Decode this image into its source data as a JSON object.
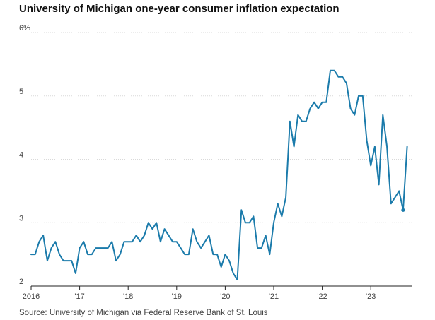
{
  "title": "University of Michigan one-year consumer inflation expectation",
  "source": "Source: University of Michigan via Federal Reserve Bank of St. Louis",
  "colors": {
    "line": "#1b7bab",
    "grid": "#d9d9d9",
    "axis": "#222222"
  },
  "chart_data": {
    "type": "line",
    "title": "University of Michigan one-year consumer inflation expectation",
    "xlabel": "",
    "ylabel": "",
    "grid": true,
    "legend": "none",
    "ylim": [
      2,
      6
    ],
    "yticks": [
      {
        "value": 2,
        "label": "2"
      },
      {
        "value": 3,
        "label": "3"
      },
      {
        "value": 4,
        "label": "4"
      },
      {
        "value": 5,
        "label": "5"
      },
      {
        "value": 6,
        "label": "6%"
      }
    ],
    "xticks": [
      {
        "value": 2016,
        "label": "2016"
      },
      {
        "value": 2017,
        "label": "'17"
      },
      {
        "value": 2018,
        "label": "'18"
      },
      {
        "value": 2019,
        "label": "'19"
      },
      {
        "value": 2020,
        "label": "'20"
      },
      {
        "value": 2021,
        "label": "'21"
      },
      {
        "value": 2022,
        "label": "'22"
      },
      {
        "value": 2023,
        "label": "'23"
      }
    ],
    "series": [
      {
        "start": "2016-01",
        "frequency": "monthly",
        "values": [
          2.5,
          2.5,
          2.7,
          2.8,
          2.4,
          2.6,
          2.7,
          2.5,
          2.4,
          2.4,
          2.4,
          2.2,
          2.6,
          2.7,
          2.5,
          2.5,
          2.6,
          2.6,
          2.6,
          2.6,
          2.7,
          2.4,
          2.5,
          2.7,
          2.7,
          2.7,
          2.8,
          2.7,
          2.8,
          3.0,
          2.9,
          3.0,
          2.7,
          2.9,
          2.8,
          2.7,
          2.7,
          2.6,
          2.5,
          2.5,
          2.9,
          2.7,
          2.6,
          2.7,
          2.8,
          2.5,
          2.5,
          2.3,
          2.5,
          2.4,
          2.2,
          2.1,
          3.2,
          3.0,
          3.0,
          3.1,
          2.6,
          2.6,
          2.8,
          2.5,
          3.0,
          3.3,
          3.1,
          3.4,
          4.6,
          4.2,
          4.7,
          4.6,
          4.6,
          4.8,
          4.9,
          4.8,
          4.9,
          4.9,
          5.4,
          5.4,
          5.3,
          5.3,
          5.2,
          4.8,
          4.7,
          5.0,
          5.0,
          4.3,
          3.9,
          4.2,
          3.6,
          4.7,
          4.2,
          3.3,
          3.4,
          3.5,
          3.2,
          4.2
        ],
        "marker": {
          "date": "2023-09",
          "value": 3.2
        }
      }
    ]
  }
}
